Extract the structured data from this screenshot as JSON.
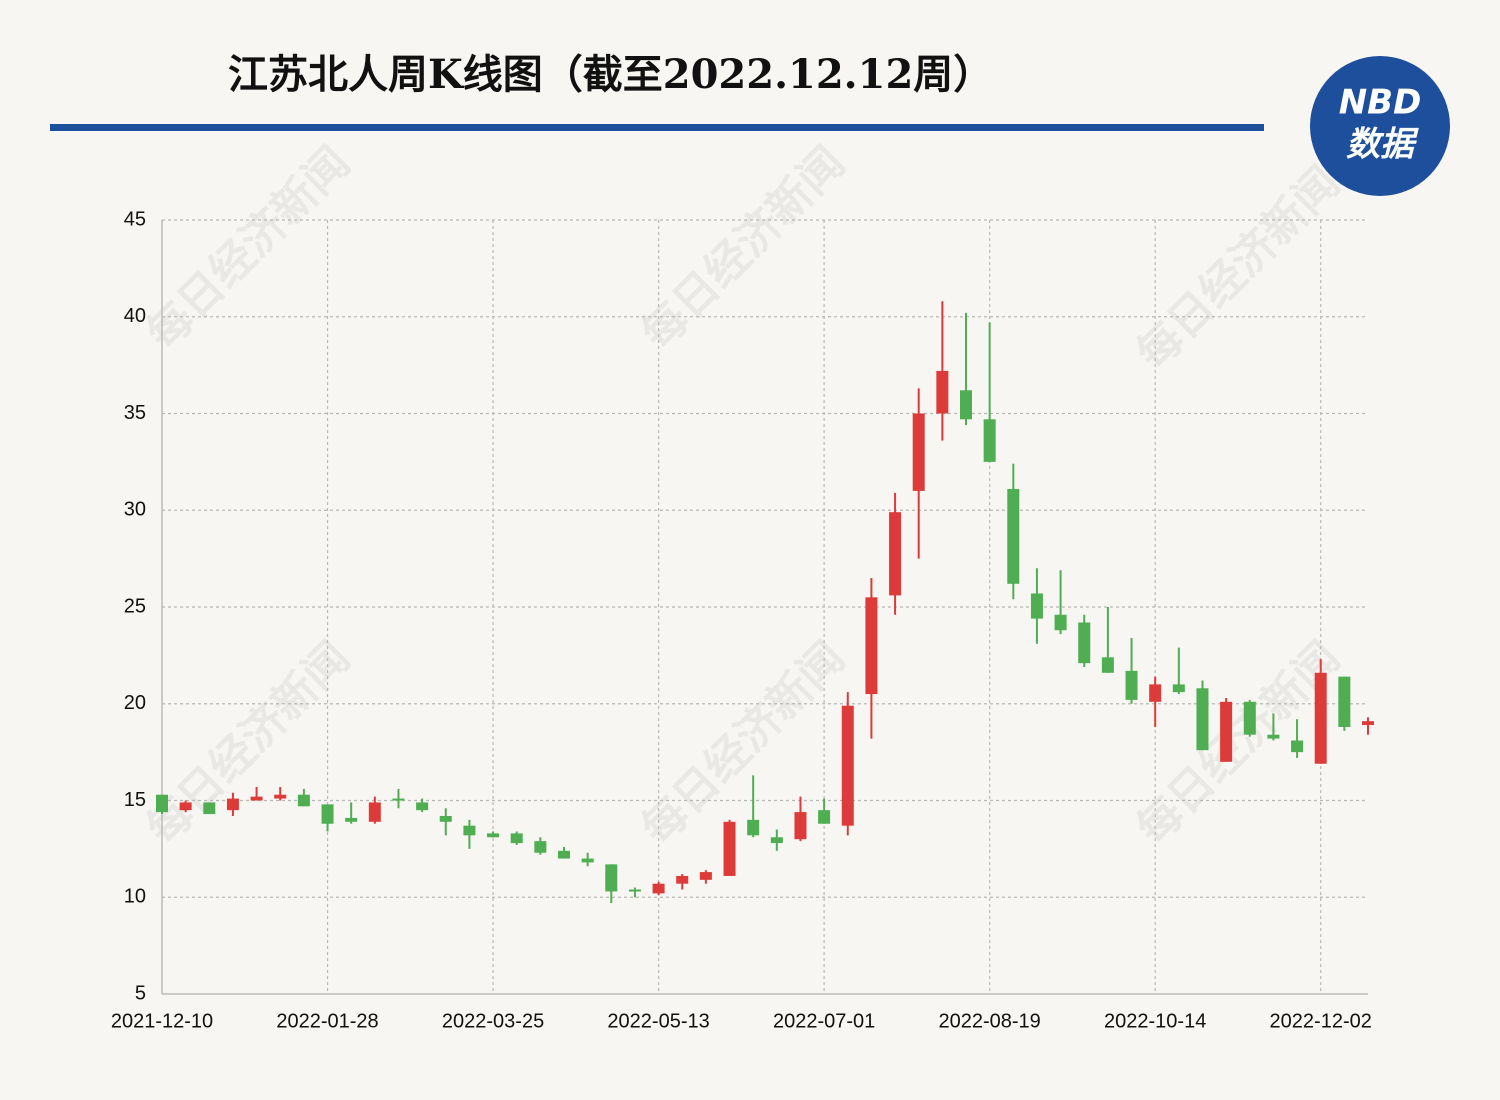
{
  "chart_data": {
    "type": "candlestick",
    "title": "江苏北人周K线图（截至2022.12.12周）",
    "logo": {
      "top": "NBD",
      "bottom": "数据"
    },
    "watermark": "每日经济新闻",
    "categories": [
      "2021-12-10",
      null,
      null,
      null,
      null,
      null,
      null,
      "2022-01-28",
      null,
      null,
      null,
      null,
      null,
      null,
      "2022-03-25",
      null,
      null,
      null,
      null,
      null,
      null,
      "2022-05-13",
      null,
      null,
      null,
      null,
      null,
      null,
      "2022-07-01",
      null,
      null,
      null,
      null,
      null,
      null,
      "2022-08-19",
      null,
      null,
      null,
      null,
      null,
      null,
      "2022-10-14",
      null,
      null,
      null,
      null,
      null,
      null,
      "2022-12-02",
      null,
      null
    ],
    "open": [
      15.3,
      14.5,
      14.9,
      14.5,
      15.0,
      15.1,
      15.3,
      14.8,
      14.1,
      13.9,
      15.1,
      14.9,
      14.2,
      13.7,
      13.3,
      13.3,
      12.9,
      12.4,
      12.0,
      11.7,
      10.4,
      10.2,
      10.7,
      10.9,
      11.1,
      14.0,
      13.1,
      13.0,
      14.5,
      13.7,
      20.5,
      25.6,
      31.0,
      35.0,
      36.2,
      34.7,
      31.1,
      25.7,
      24.6,
      24.2,
      22.4,
      21.7,
      20.1,
      21.0,
      20.8,
      17.0,
      20.1,
      18.4,
      18.1,
      16.9,
      21.4,
      18.9
    ],
    "close": [
      14.4,
      14.9,
      14.3,
      15.1,
      15.2,
      15.3,
      14.7,
      13.8,
      13.9,
      14.9,
      15.0,
      14.5,
      13.9,
      13.2,
      13.1,
      12.8,
      12.3,
      12.0,
      11.8,
      10.3,
      10.3,
      10.7,
      11.1,
      11.3,
      13.9,
      13.2,
      12.8,
      14.4,
      13.8,
      19.9,
      25.5,
      29.9,
      35.0,
      37.2,
      34.7,
      32.5,
      26.2,
      24.4,
      23.8,
      22.1,
      21.6,
      20.2,
      21.0,
      20.6,
      17.6,
      20.1,
      18.4,
      18.2,
      17.5,
      21.6,
      18.8,
      19.1
    ],
    "high": [
      15.3,
      15.0,
      14.9,
      15.4,
      15.7,
      15.7,
      15.6,
      14.8,
      14.9,
      15.2,
      15.6,
      15.1,
      14.6,
      14.0,
      13.4,
      13.4,
      13.1,
      12.6,
      12.3,
      11.7,
      10.5,
      10.8,
      11.2,
      11.4,
      14.0,
      16.3,
      13.5,
      15.2,
      15.1,
      20.6,
      26.5,
      30.9,
      36.3,
      40.8,
      40.2,
      39.7,
      32.4,
      27.0,
      26.9,
      24.6,
      25.0,
      23.4,
      21.4,
      22.9,
      21.2,
      20.3,
      20.2,
      19.5,
      19.2,
      22.3,
      21.4,
      19.3
    ],
    "low": [
      14.3,
      14.4,
      14.3,
      14.2,
      15.0,
      15.0,
      14.7,
      13.4,
      13.8,
      13.8,
      14.6,
      14.4,
      13.2,
      12.5,
      13.1,
      12.7,
      12.2,
      12.0,
      11.6,
      9.7,
      10.0,
      10.1,
      10.4,
      10.7,
      11.1,
      13.1,
      12.4,
      12.9,
      13.8,
      13.2,
      18.2,
      24.6,
      27.5,
      33.6,
      34.4,
      32.5,
      25.4,
      23.1,
      23.6,
      21.9,
      21.6,
      20.0,
      18.8,
      20.5,
      17.6,
      17.0,
      18.3,
      18.1,
      17.2,
      16.9,
      18.6,
      18.4
    ],
    "up_color": "#dd3b39",
    "down_color": "#4fad52",
    "ylim": [
      5,
      45
    ],
    "yticks": [
      5,
      10,
      15,
      20,
      25,
      30,
      35,
      40,
      45
    ],
    "grid": true
  }
}
